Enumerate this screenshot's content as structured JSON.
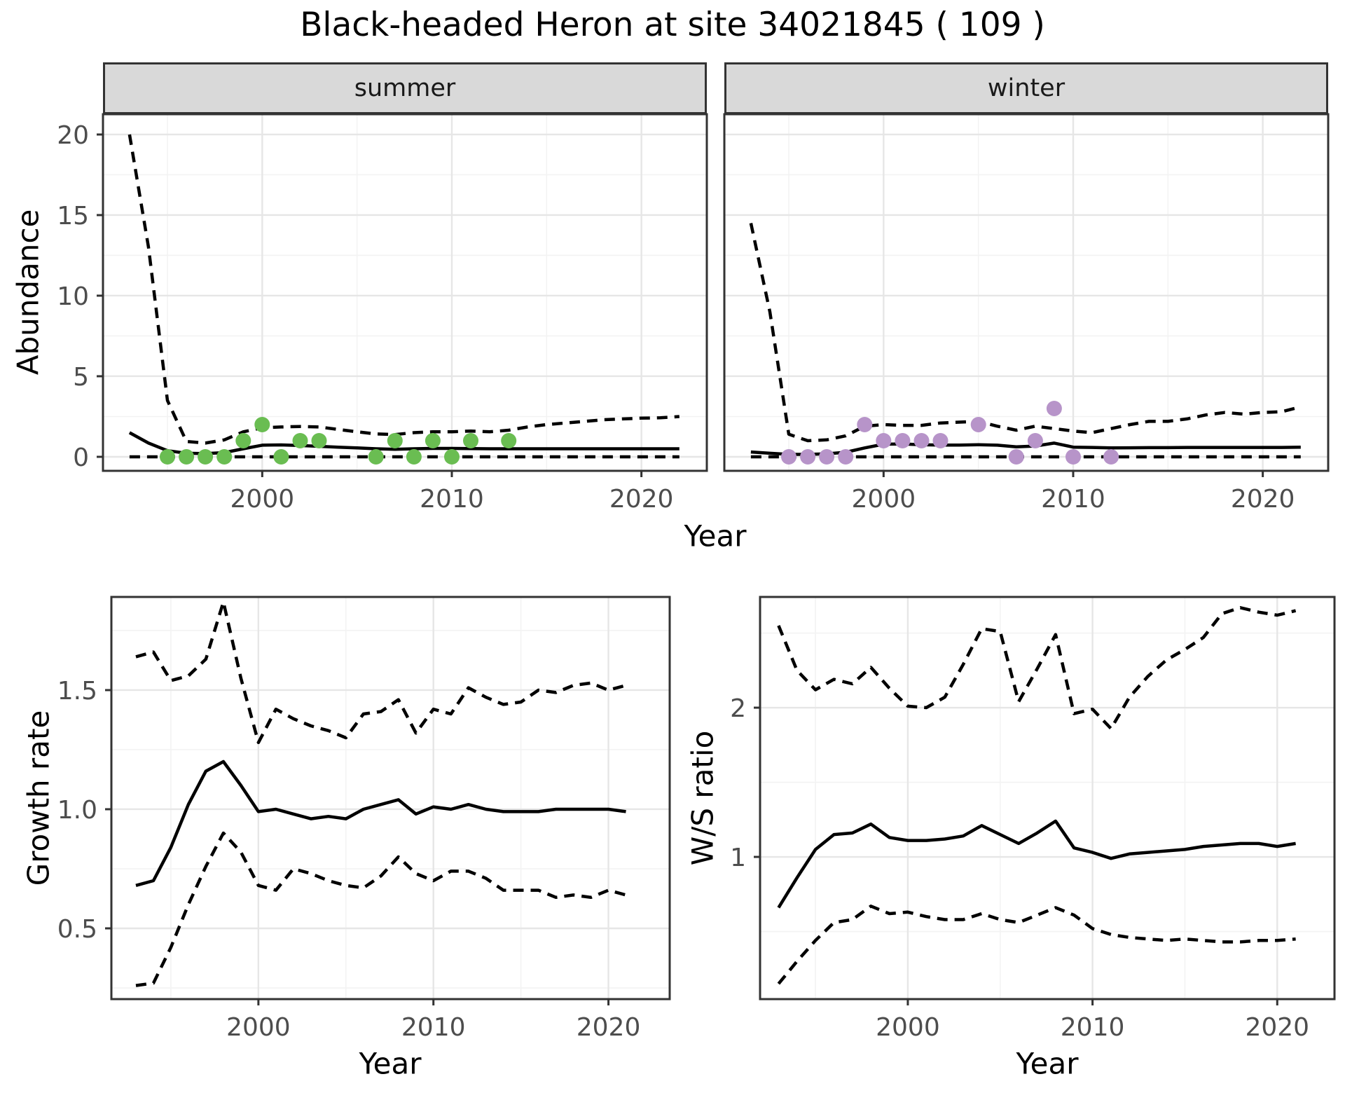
{
  "title": "Black-headed Heron at site 34021845 ( 109 )",
  "facets": {
    "summer": "summer",
    "winter": "winter"
  },
  "axis_titles": {
    "abundance": "Abundance",
    "year": "Year",
    "growth_rate": "Growth rate",
    "ws_ratio": "W/S ratio"
  },
  "colors": {
    "summer_point": "#6abd52",
    "winter_point": "#b794c9",
    "line": "#000000",
    "grid_major": "#e6e6e6",
    "grid_minor": "#f3f3f3",
    "panel_border": "#333333",
    "strip_bg": "#d9d9d9",
    "axis_text": "#4d4d4d",
    "tick_mark": "#333333"
  },
  "chart_data": [
    {
      "id": "abundance_summer",
      "type": "line",
      "title": "summer",
      "xlabel": "Year",
      "ylabel": "Abundance",
      "x_range": [
        1991.6,
        2023.45
      ],
      "y_range": [
        -0.87,
        21.26
      ],
      "x_ticks": [
        2000,
        2010,
        2020
      ],
      "x_tick_labels": [
        "2000",
        "2010",
        "2020"
      ],
      "x_minor": [
        1995,
        2005,
        2015
      ],
      "y_ticks": [
        0,
        5,
        10,
        15,
        20
      ],
      "y_tick_labels": [
        "0",
        "5",
        "10",
        "15",
        "20"
      ],
      "y_minor": [
        2.5,
        7.5,
        12.5,
        17.5
      ],
      "years": [
        1993,
        1994,
        1995,
        1996,
        1997,
        1998,
        1999,
        2000,
        2001,
        2002,
        2003,
        2004,
        2005,
        2006,
        2007,
        2008,
        2009,
        2010,
        2011,
        2012,
        2013,
        2014,
        2015,
        2016,
        2017,
        2018,
        2019,
        2020,
        2021,
        2022
      ],
      "series": [
        {
          "name": "upper_ci",
          "style": "dashed",
          "values": [
            20.0,
            13.0,
            3.5,
            0.95,
            0.85,
            1.05,
            1.55,
            1.8,
            1.85,
            1.88,
            1.85,
            1.7,
            1.55,
            1.42,
            1.38,
            1.5,
            1.55,
            1.55,
            1.6,
            1.55,
            1.65,
            1.85,
            2.0,
            2.1,
            2.2,
            2.3,
            2.35,
            2.4,
            2.42,
            2.5
          ]
        },
        {
          "name": "median",
          "style": "solid",
          "values": [
            1.5,
            0.85,
            0.38,
            0.22,
            0.2,
            0.26,
            0.5,
            0.72,
            0.74,
            0.7,
            0.65,
            0.6,
            0.55,
            0.5,
            0.47,
            0.5,
            0.52,
            0.52,
            0.51,
            0.5,
            0.5,
            0.5,
            0.5,
            0.5,
            0.5,
            0.5,
            0.5,
            0.5,
            0.5,
            0.5
          ]
        },
        {
          "name": "lower_ci",
          "style": "dashed",
          "values": [
            0,
            0,
            0,
            0,
            0,
            0,
            0,
            0,
            0,
            0,
            0,
            0,
            0,
            0,
            0,
            0,
            0,
            0,
            0,
            0,
            0,
            0,
            0,
            0,
            0,
            0,
            0,
            0,
            0,
            0
          ]
        }
      ],
      "points": {
        "color_key": "summer_point",
        "years": [
          1995,
          1996,
          1997,
          1998,
          1999,
          2000,
          2001,
          2002,
          2003,
          2006,
          2007,
          2008,
          2009,
          2010,
          2011,
          2013
        ],
        "values": [
          0,
          0,
          0,
          0,
          1,
          2,
          0,
          1,
          1,
          0,
          1,
          0,
          1,
          0,
          1,
          1
        ]
      }
    },
    {
      "id": "abundance_winter",
      "type": "line",
      "title": "winter",
      "xlabel": "Year",
      "ylabel": "Abundance",
      "x_range": [
        1991.6,
        2023.45
      ],
      "y_range": [
        -0.87,
        21.26
      ],
      "x_ticks": [
        2000,
        2010,
        2020
      ],
      "x_tick_labels": [
        "2000",
        "2010",
        "2020"
      ],
      "x_minor": [
        1995,
        2005,
        2015
      ],
      "y_ticks": [
        0,
        5,
        10,
        15,
        20
      ],
      "y_tick_labels": [],
      "y_minor": [
        2.5,
        7.5,
        12.5,
        17.5
      ],
      "years": [
        1993,
        1994,
        1995,
        1996,
        1997,
        1998,
        1999,
        2000,
        2001,
        2002,
        2003,
        2004,
        2005,
        2006,
        2007,
        2008,
        2009,
        2010,
        2011,
        2012,
        2013,
        2014,
        2015,
        2016,
        2017,
        2018,
        2019,
        2020,
        2021,
        2022
      ],
      "series": [
        {
          "name": "upper_ci",
          "style": "dashed",
          "values": [
            14.5,
            9.0,
            1.4,
            1.0,
            1.05,
            1.3,
            1.9,
            2.0,
            1.95,
            1.95,
            2.1,
            2.15,
            2.2,
            1.9,
            1.65,
            1.9,
            1.75,
            1.6,
            1.5,
            1.75,
            2.0,
            2.2,
            2.2,
            2.35,
            2.6,
            2.75,
            2.65,
            2.75,
            2.8,
            3.1
          ]
        },
        {
          "name": "median",
          "style": "solid",
          "values": [
            0.3,
            0.22,
            0.15,
            0.15,
            0.18,
            0.28,
            0.55,
            0.78,
            0.8,
            0.75,
            0.73,
            0.73,
            0.75,
            0.72,
            0.62,
            0.67,
            0.85,
            0.6,
            0.58,
            0.55,
            0.56,
            0.57,
            0.57,
            0.58,
            0.58,
            0.58,
            0.58,
            0.58,
            0.58,
            0.6
          ]
        },
        {
          "name": "lower_ci",
          "style": "dashed",
          "values": [
            0,
            0,
            0,
            0,
            0,
            0,
            0,
            0,
            0,
            0,
            0,
            0,
            0,
            0,
            0,
            0,
            0,
            0,
            0,
            0,
            0,
            0,
            0,
            0,
            0,
            0,
            0,
            0,
            0,
            0
          ]
        }
      ],
      "points": {
        "color_key": "winter_point",
        "years": [
          1995,
          1996,
          1997,
          1998,
          1999,
          2000,
          2001,
          2002,
          2003,
          2005,
          2007,
          2008,
          2009,
          2010,
          2012
        ],
        "values": [
          0,
          0,
          0,
          0,
          2,
          1,
          1,
          1,
          1,
          2,
          0,
          1,
          3,
          0,
          0
        ]
      }
    },
    {
      "id": "growth_rate",
      "type": "line",
      "title": "",
      "xlabel": "Year",
      "ylabel": "Growth rate",
      "x_range": [
        1991.6,
        2023.5
      ],
      "y_range": [
        0.203,
        1.891
      ],
      "x_ticks": [
        2000,
        2010,
        2020
      ],
      "x_tick_labels": [
        "2000",
        "2010",
        "2020"
      ],
      "x_minor": [
        1995,
        2005,
        2015
      ],
      "y_ticks": [
        0.5,
        1.0,
        1.5
      ],
      "y_tick_labels": [
        "0.5",
        "1.0",
        "1.5"
      ],
      "y_minor": [
        0.25,
        0.75,
        1.25,
        1.75
      ],
      "years": [
        1993,
        1994,
        1995,
        1996,
        1997,
        1998,
        1999,
        2000,
        2001,
        2002,
        2003,
        2004,
        2005,
        2006,
        2007,
        2008,
        2009,
        2010,
        2011,
        2012,
        2013,
        2014,
        2015,
        2016,
        2017,
        2018,
        2019,
        2020,
        2021
      ],
      "series": [
        {
          "name": "upper_ci",
          "style": "dashed",
          "values": [
            1.64,
            1.66,
            1.54,
            1.56,
            1.63,
            1.87,
            1.55,
            1.28,
            1.42,
            1.38,
            1.35,
            1.33,
            1.3,
            1.4,
            1.41,
            1.46,
            1.32,
            1.42,
            1.4,
            1.51,
            1.47,
            1.44,
            1.45,
            1.5,
            1.49,
            1.52,
            1.53,
            1.5,
            1.52
          ]
        },
        {
          "name": "median",
          "style": "solid",
          "values": [
            0.68,
            0.7,
            0.84,
            1.02,
            1.16,
            1.2,
            1.1,
            0.99,
            1.0,
            0.98,
            0.96,
            0.97,
            0.96,
            1.0,
            1.02,
            1.04,
            0.98,
            1.01,
            1.0,
            1.02,
            1.0,
            0.99,
            0.99,
            0.99,
            1.0,
            1.0,
            1.0,
            1.0,
            0.99
          ]
        },
        {
          "name": "lower_ci",
          "style": "dashed",
          "values": [
            0.26,
            0.27,
            0.42,
            0.6,
            0.76,
            0.9,
            0.82,
            0.68,
            0.66,
            0.75,
            0.73,
            0.7,
            0.68,
            0.67,
            0.72,
            0.8,
            0.73,
            0.7,
            0.74,
            0.74,
            0.71,
            0.66,
            0.66,
            0.66,
            0.63,
            0.64,
            0.63,
            0.66,
            0.64
          ]
        }
      ]
    },
    {
      "id": "ws_ratio",
      "type": "line",
      "title": "",
      "xlabel": "Year",
      "ylabel": "W/S ratio",
      "x_range": [
        1992.0,
        2023.1
      ],
      "y_range": [
        0.047,
        2.742
      ],
      "x_ticks": [
        2000,
        2010,
        2020
      ],
      "x_tick_labels": [
        "2000",
        "2010",
        "2020"
      ],
      "x_minor": [
        1995,
        2005,
        2015
      ],
      "y_ticks": [
        1,
        2
      ],
      "y_tick_labels": [
        "1",
        "2"
      ],
      "y_minor": [
        0.5,
        1.5,
        2.5
      ],
      "years": [
        1993,
        1994,
        1995,
        1996,
        1997,
        1998,
        1999,
        2000,
        2001,
        2002,
        2003,
        2004,
        2005,
        2006,
        2007,
        2008,
        2009,
        2010,
        2011,
        2012,
        2013,
        2014,
        2015,
        2016,
        2017,
        2018,
        2019,
        2020,
        2021
      ],
      "series": [
        {
          "name": "upper_ci",
          "style": "dashed",
          "values": [
            2.55,
            2.25,
            2.12,
            2.19,
            2.16,
            2.27,
            2.13,
            2.01,
            2.0,
            2.07,
            2.29,
            2.53,
            2.51,
            2.04,
            2.26,
            2.49,
            1.96,
            1.99,
            1.86,
            2.07,
            2.21,
            2.32,
            2.39,
            2.47,
            2.63,
            2.67,
            2.64,
            2.62,
            2.65
          ]
        },
        {
          "name": "median",
          "style": "solid",
          "values": [
            0.66,
            0.86,
            1.05,
            1.15,
            1.16,
            1.22,
            1.13,
            1.11,
            1.11,
            1.12,
            1.14,
            1.21,
            1.15,
            1.09,
            1.16,
            1.24,
            1.06,
            1.03,
            0.99,
            1.02,
            1.03,
            1.04,
            1.05,
            1.07,
            1.08,
            1.09,
            1.09,
            1.07,
            1.09
          ]
        },
        {
          "name": "lower_ci",
          "style": "dashed",
          "values": [
            0.15,
            0.3,
            0.44,
            0.56,
            0.58,
            0.67,
            0.62,
            0.63,
            0.6,
            0.58,
            0.58,
            0.62,
            0.58,
            0.56,
            0.61,
            0.66,
            0.61,
            0.52,
            0.48,
            0.46,
            0.45,
            0.44,
            0.45,
            0.44,
            0.43,
            0.43,
            0.44,
            0.44,
            0.45
          ]
        }
      ]
    }
  ]
}
